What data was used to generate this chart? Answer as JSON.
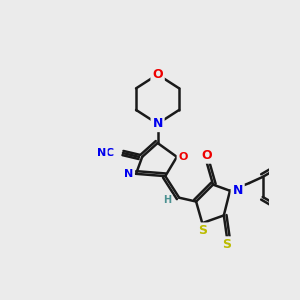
{
  "background_color": "#ebebeb",
  "bond_color": "#1a1a1a",
  "bond_width": 1.8,
  "atom_colors": {
    "C": "#1a1a1a",
    "N": "#0000ee",
    "O": "#ee0000",
    "S": "#bbbb00",
    "H": "#4a9090"
  },
  "font_size": 8,
  "fig_width": 3.0,
  "fig_height": 3.0,
  "dpi": 100
}
